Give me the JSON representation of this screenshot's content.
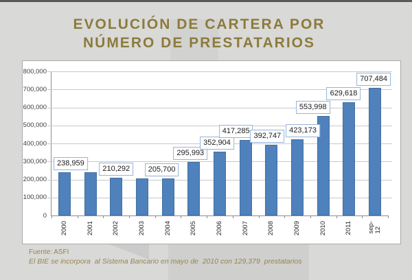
{
  "page": {
    "title_line1": "EVOLUCIÓN DE CARTERA POR",
    "title_line2": "NÚMERO DE PRESTATARIOS"
  },
  "footer": {
    "source": "Fuente: ASFI",
    "note": "El BIE se incorpora  al Sistema Bancario en mayo de  2010 con 129,379  prestatarios"
  },
  "colors": {
    "title": "#8c7b3c",
    "bar": "#4f81bd",
    "bar_border": "#41709e",
    "label_box_border": "#95b3d7",
    "page_background": "#d9d9d8",
    "chart_background": "#ffffff"
  },
  "chart_data": {
    "type": "bar",
    "title": "EVOLUCIÓN DE CARTERA POR NÚMERO DE PRESTATARIOS",
    "categories": [
      "2000",
      "2001",
      "2002",
      "2003",
      "2004",
      "2005",
      "2006",
      "2007",
      "2008",
      "2009",
      "2010",
      "2011",
      "sep-\n12"
    ],
    "values": [
      238959,
      240500,
      210292,
      205000,
      205700,
      295993,
      352904,
      417285,
      392747,
      423173,
      553998,
      629618,
      707484
    ],
    "data_labels": [
      "238,959",
      null,
      "210,292",
      null,
      "205,700",
      "295,993",
      "352,904",
      "417,285",
      "392,747",
      "423,173",
      "553,998",
      "629,618",
      "707,484"
    ],
    "y_ticks": [
      "800,000",
      "700,000",
      "600,000",
      "500,000",
      "400,000",
      "300,000",
      "200,000",
      "100,000",
      "0"
    ],
    "ylim": [
      0,
      800000
    ],
    "xlabel": "",
    "ylabel": "",
    "grid": true,
    "legend_position": "none",
    "bar_color": "#4f81bd",
    "notes": "values for 2001 and 2003 estimated from gridlines (no data labels shown)"
  }
}
